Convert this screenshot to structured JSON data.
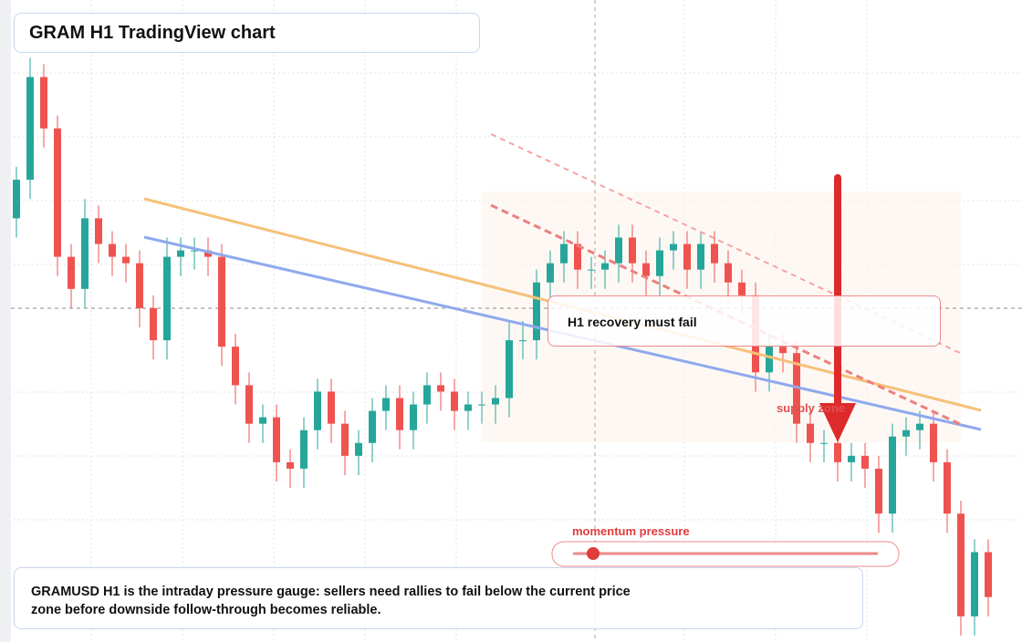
{
  "chart_data": {
    "type": "candlestick",
    "title": "GRAM H1 TradingView chart",
    "ylim": [
      0,
      100
    ],
    "up_color": "#26a69a",
    "down_color": "#ef5350",
    "open": [
      66,
      72,
      88,
      80,
      60,
      55,
      66,
      62,
      60,
      59,
      52,
      47,
      60,
      61,
      61,
      60,
      46,
      40,
      34,
      35,
      28,
      27,
      33,
      39,
      34,
      29,
      31,
      36,
      38,
      33,
      37,
      40,
      39,
      36,
      37,
      37,
      38,
      47,
      47,
      56,
      59,
      62,
      58,
      58,
      59,
      63,
      59,
      57,
      61,
      62,
      58,
      62,
      59,
      56,
      54,
      42,
      46,
      45,
      34,
      31,
      31,
      28,
      29,
      27,
      20,
      32,
      33,
      34,
      28,
      20,
      4,
      14
    ],
    "high": [
      74,
      91,
      90,
      82,
      62,
      69,
      68,
      64,
      62,
      61,
      54,
      63,
      63,
      63,
      63,
      62,
      48,
      42,
      37,
      37,
      30,
      35,
      41,
      41,
      36,
      33,
      38,
      40,
      40,
      39,
      42,
      42,
      41,
      39,
      39,
      40,
      50,
      50,
      58,
      61,
      64,
      64,
      60,
      61,
      65,
      65,
      61,
      63,
      64,
      64,
      64,
      64,
      61,
      58,
      56,
      48,
      48,
      47,
      36,
      33,
      33,
      31,
      31,
      29,
      34,
      35,
      36,
      36,
      30,
      22,
      16,
      16
    ],
    "low": [
      63,
      69,
      77,
      57,
      52,
      52,
      59,
      57,
      56,
      49,
      44,
      44,
      57,
      58,
      57,
      43,
      37,
      31,
      31,
      25,
      24,
      24,
      30,
      31,
      26,
      26,
      28,
      33,
      30,
      30,
      34,
      36,
      33,
      33,
      34,
      34,
      35,
      44,
      44,
      53,
      56,
      55,
      55,
      55,
      56,
      56,
      54,
      54,
      58,
      55,
      55,
      56,
      53,
      51,
      39,
      39,
      42,
      31,
      28,
      28,
      25,
      25,
      24,
      17,
      17,
      29,
      30,
      25,
      17,
      1,
      1,
      4
    ],
    "close": [
      72,
      88,
      80,
      60,
      55,
      66,
      62,
      60,
      59,
      52,
      47,
      60,
      61,
      61,
      60,
      46,
      40,
      34,
      35,
      28,
      27,
      33,
      39,
      34,
      29,
      31,
      36,
      38,
      33,
      37,
      40,
      39,
      36,
      37,
      37,
      38,
      47,
      47,
      56,
      59,
      62,
      58,
      58,
      59,
      63,
      59,
      57,
      61,
      62,
      58,
      62,
      59,
      56,
      54,
      42,
      46,
      45,
      34,
      31,
      31,
      28,
      29,
      27,
      20,
      32,
      33,
      34,
      28,
      20,
      4,
      14,
      7
    ],
    "annotations": [
      "H1 recovery must fail",
      "supply zone",
      "momentum pressure"
    ],
    "caption": "GRAMUSD H1 is the intraday pressure gauge: sellers need rallies to fail below the current price zone before downside follow-through becomes reliable."
  }
}
